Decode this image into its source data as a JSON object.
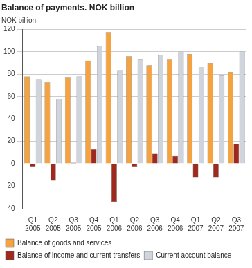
{
  "chart_data": {
    "type": "bar",
    "title": "Balance of payments. NOK billion",
    "y_label": "NOK billion",
    "categories": [
      "Q1 2005",
      "Q2 2005",
      "Q3 2005",
      "Q4 2005",
      "Q1 2006",
      "Q2 2006",
      "Q3 2006",
      "Q4 2006",
      "Q1 2007",
      "Q2 2007",
      "Q3 2007"
    ],
    "series": [
      {
        "name": "Balance of goods and services",
        "color": "#f5a340",
        "values": [
          78,
          73,
          77,
          92,
          117,
          96,
          88,
          93,
          98,
          90,
          82
        ]
      },
      {
        "name": "Balance of income and current transfers",
        "color": "#9e2a1f",
        "values": [
          -3,
          -15,
          1,
          13,
          -34,
          -3,
          9,
          7,
          -12,
          -12,
          18
        ]
      },
      {
        "name": "Current account balance",
        "color": "#d0d4dc",
        "values": [
          75,
          58,
          78,
          105,
          83,
          93,
          97,
          100,
          86,
          79,
          100
        ]
      }
    ],
    "ylim": [
      -40,
      120
    ],
    "yticks": [
      -40,
      -20,
      0,
      20,
      40,
      60,
      80,
      100,
      120
    ],
    "grid": true,
    "legend": "bottom"
  }
}
